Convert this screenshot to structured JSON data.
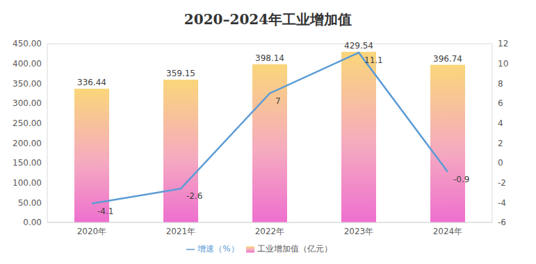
{
  "chart_data": {
    "type": "bar",
    "title": "2020–2024年工业增加值",
    "categories": [
      "2020年",
      "2021年",
      "2022年",
      "2023年",
      "2024年"
    ],
    "series": [
      {
        "name": "工业增加值（亿元）",
        "type": "bar",
        "color": "#fad67a",
        "values": [
          336.44,
          359.15,
          398.14,
          429.54,
          396.74
        ],
        "data_labels": true
      },
      {
        "name": "增速（%）",
        "type": "line",
        "color": "#5b9bd5",
        "axis": "y2",
        "values": [
          -4.1,
          -2.6,
          7,
          11.1,
          -0.9
        ],
        "data_labels": true
      }
    ],
    "ylim": [
      0,
      450
    ],
    "yticks": [
      {
        "value": 0,
        "label": "0.00"
      },
      {
        "value": 50,
        "label": "50.00"
      },
      {
        "value": 100,
        "label": "100.00"
      },
      {
        "value": 150,
        "label": "150.00"
      },
      {
        "value": 200,
        "label": "200.00"
      },
      {
        "value": 250,
        "label": "250.00"
      },
      {
        "value": 300,
        "label": "300.00"
      },
      {
        "value": 350,
        "label": "350.00"
      },
      {
        "value": 400,
        "label": "400.00"
      },
      {
        "value": 450,
        "label": "450.00"
      }
    ],
    "y2lim": [
      -6,
      12
    ],
    "y2ticks": [
      -6,
      -4,
      -2,
      0,
      2,
      4,
      6,
      8,
      10,
      12
    ],
    "grid": true,
    "legend": "bottom"
  }
}
